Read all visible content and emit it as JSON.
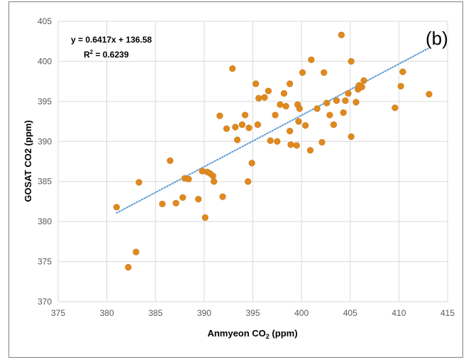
{
  "chart_data": {
    "type": "scatter",
    "panel_label": "(b)",
    "xlabel": "Anmyeon CO",
    "xlabel_sub": "2",
    "xlabel_suffix": " (ppm)",
    "ylabel": "GOSAT  CO2 (ppm)",
    "xlim": [
      375,
      415
    ],
    "ylim": [
      370,
      405
    ],
    "xticks": [
      375,
      380,
      385,
      390,
      395,
      400,
      405,
      410,
      415
    ],
    "yticks": [
      370,
      375,
      380,
      385,
      390,
      395,
      400,
      405
    ],
    "grid": true,
    "marker_color": "#e08a1e",
    "trendline_color": "#5b9bd5",
    "trendline": {
      "slope": 0.6417,
      "intercept": 136.58,
      "x_range": [
        381,
        413
      ],
      "equation_label": "y = 0.6417x + 136.58",
      "r2_label_prefix": "R",
      "r2_label_sup": "2",
      "r2_label_suffix": " = 0.6239"
    },
    "points": [
      [
        381.0,
        381.8
      ],
      [
        382.2,
        374.3
      ],
      [
        383.0,
        376.2
      ],
      [
        383.3,
        384.9
      ],
      [
        385.7,
        382.2
      ],
      [
        386.5,
        387.6
      ],
      [
        387.1,
        382.3
      ],
      [
        387.8,
        383.0
      ],
      [
        388.0,
        385.4
      ],
      [
        388.4,
        385.3
      ],
      [
        389.4,
        382.8
      ],
      [
        389.8,
        386.3
      ],
      [
        390.1,
        380.5
      ],
      [
        390.3,
        386.2
      ],
      [
        390.6,
        386.0
      ],
      [
        390.9,
        385.7
      ],
      [
        391.0,
        385.0
      ],
      [
        391.6,
        393.2
      ],
      [
        391.9,
        383.1
      ],
      [
        392.3,
        391.6
      ],
      [
        392.9,
        399.1
      ],
      [
        393.2,
        391.8
      ],
      [
        393.4,
        390.2
      ],
      [
        393.9,
        392.1
      ],
      [
        394.2,
        393.3
      ],
      [
        394.5,
        385.0
      ],
      [
        394.6,
        391.7
      ],
      [
        394.9,
        387.3
      ],
      [
        395.3,
        397.2
      ],
      [
        395.5,
        392.1
      ],
      [
        395.6,
        395.4
      ],
      [
        396.2,
        395.5
      ],
      [
        396.6,
        396.3
      ],
      [
        396.8,
        390.1
      ],
      [
        397.3,
        393.3
      ],
      [
        397.5,
        390.0
      ],
      [
        397.8,
        394.6
      ],
      [
        398.2,
        396.0
      ],
      [
        398.4,
        394.4
      ],
      [
        398.8,
        397.2
      ],
      [
        398.8,
        391.3
      ],
      [
        398.9,
        389.6
      ],
      [
        399.5,
        389.5
      ],
      [
        399.6,
        394.6
      ],
      [
        399.7,
        392.5
      ],
      [
        399.8,
        394.1
      ],
      [
        400.1,
        398.6
      ],
      [
        400.4,
        392.0
      ],
      [
        400.9,
        388.9
      ],
      [
        401.0,
        400.2
      ],
      [
        401.6,
        394.1
      ],
      [
        402.1,
        389.9
      ],
      [
        402.3,
        398.6
      ],
      [
        402.6,
        394.8
      ],
      [
        402.9,
        393.3
      ],
      [
        403.3,
        392.1
      ],
      [
        403.6,
        395.1
      ],
      [
        404.1,
        403.3
      ],
      [
        404.3,
        393.6
      ],
      [
        404.5,
        395.1
      ],
      [
        404.8,
        396.0
      ],
      [
        405.1,
        390.6
      ],
      [
        405.1,
        400.0
      ],
      [
        405.6,
        394.9
      ],
      [
        405.8,
        396.5
      ],
      [
        405.9,
        397.0
      ],
      [
        406.2,
        396.8
      ],
      [
        406.4,
        397.6
      ],
      [
        409.6,
        394.2
      ],
      [
        410.2,
        396.9
      ],
      [
        410.4,
        398.7
      ],
      [
        413.1,
        395.9
      ]
    ]
  }
}
